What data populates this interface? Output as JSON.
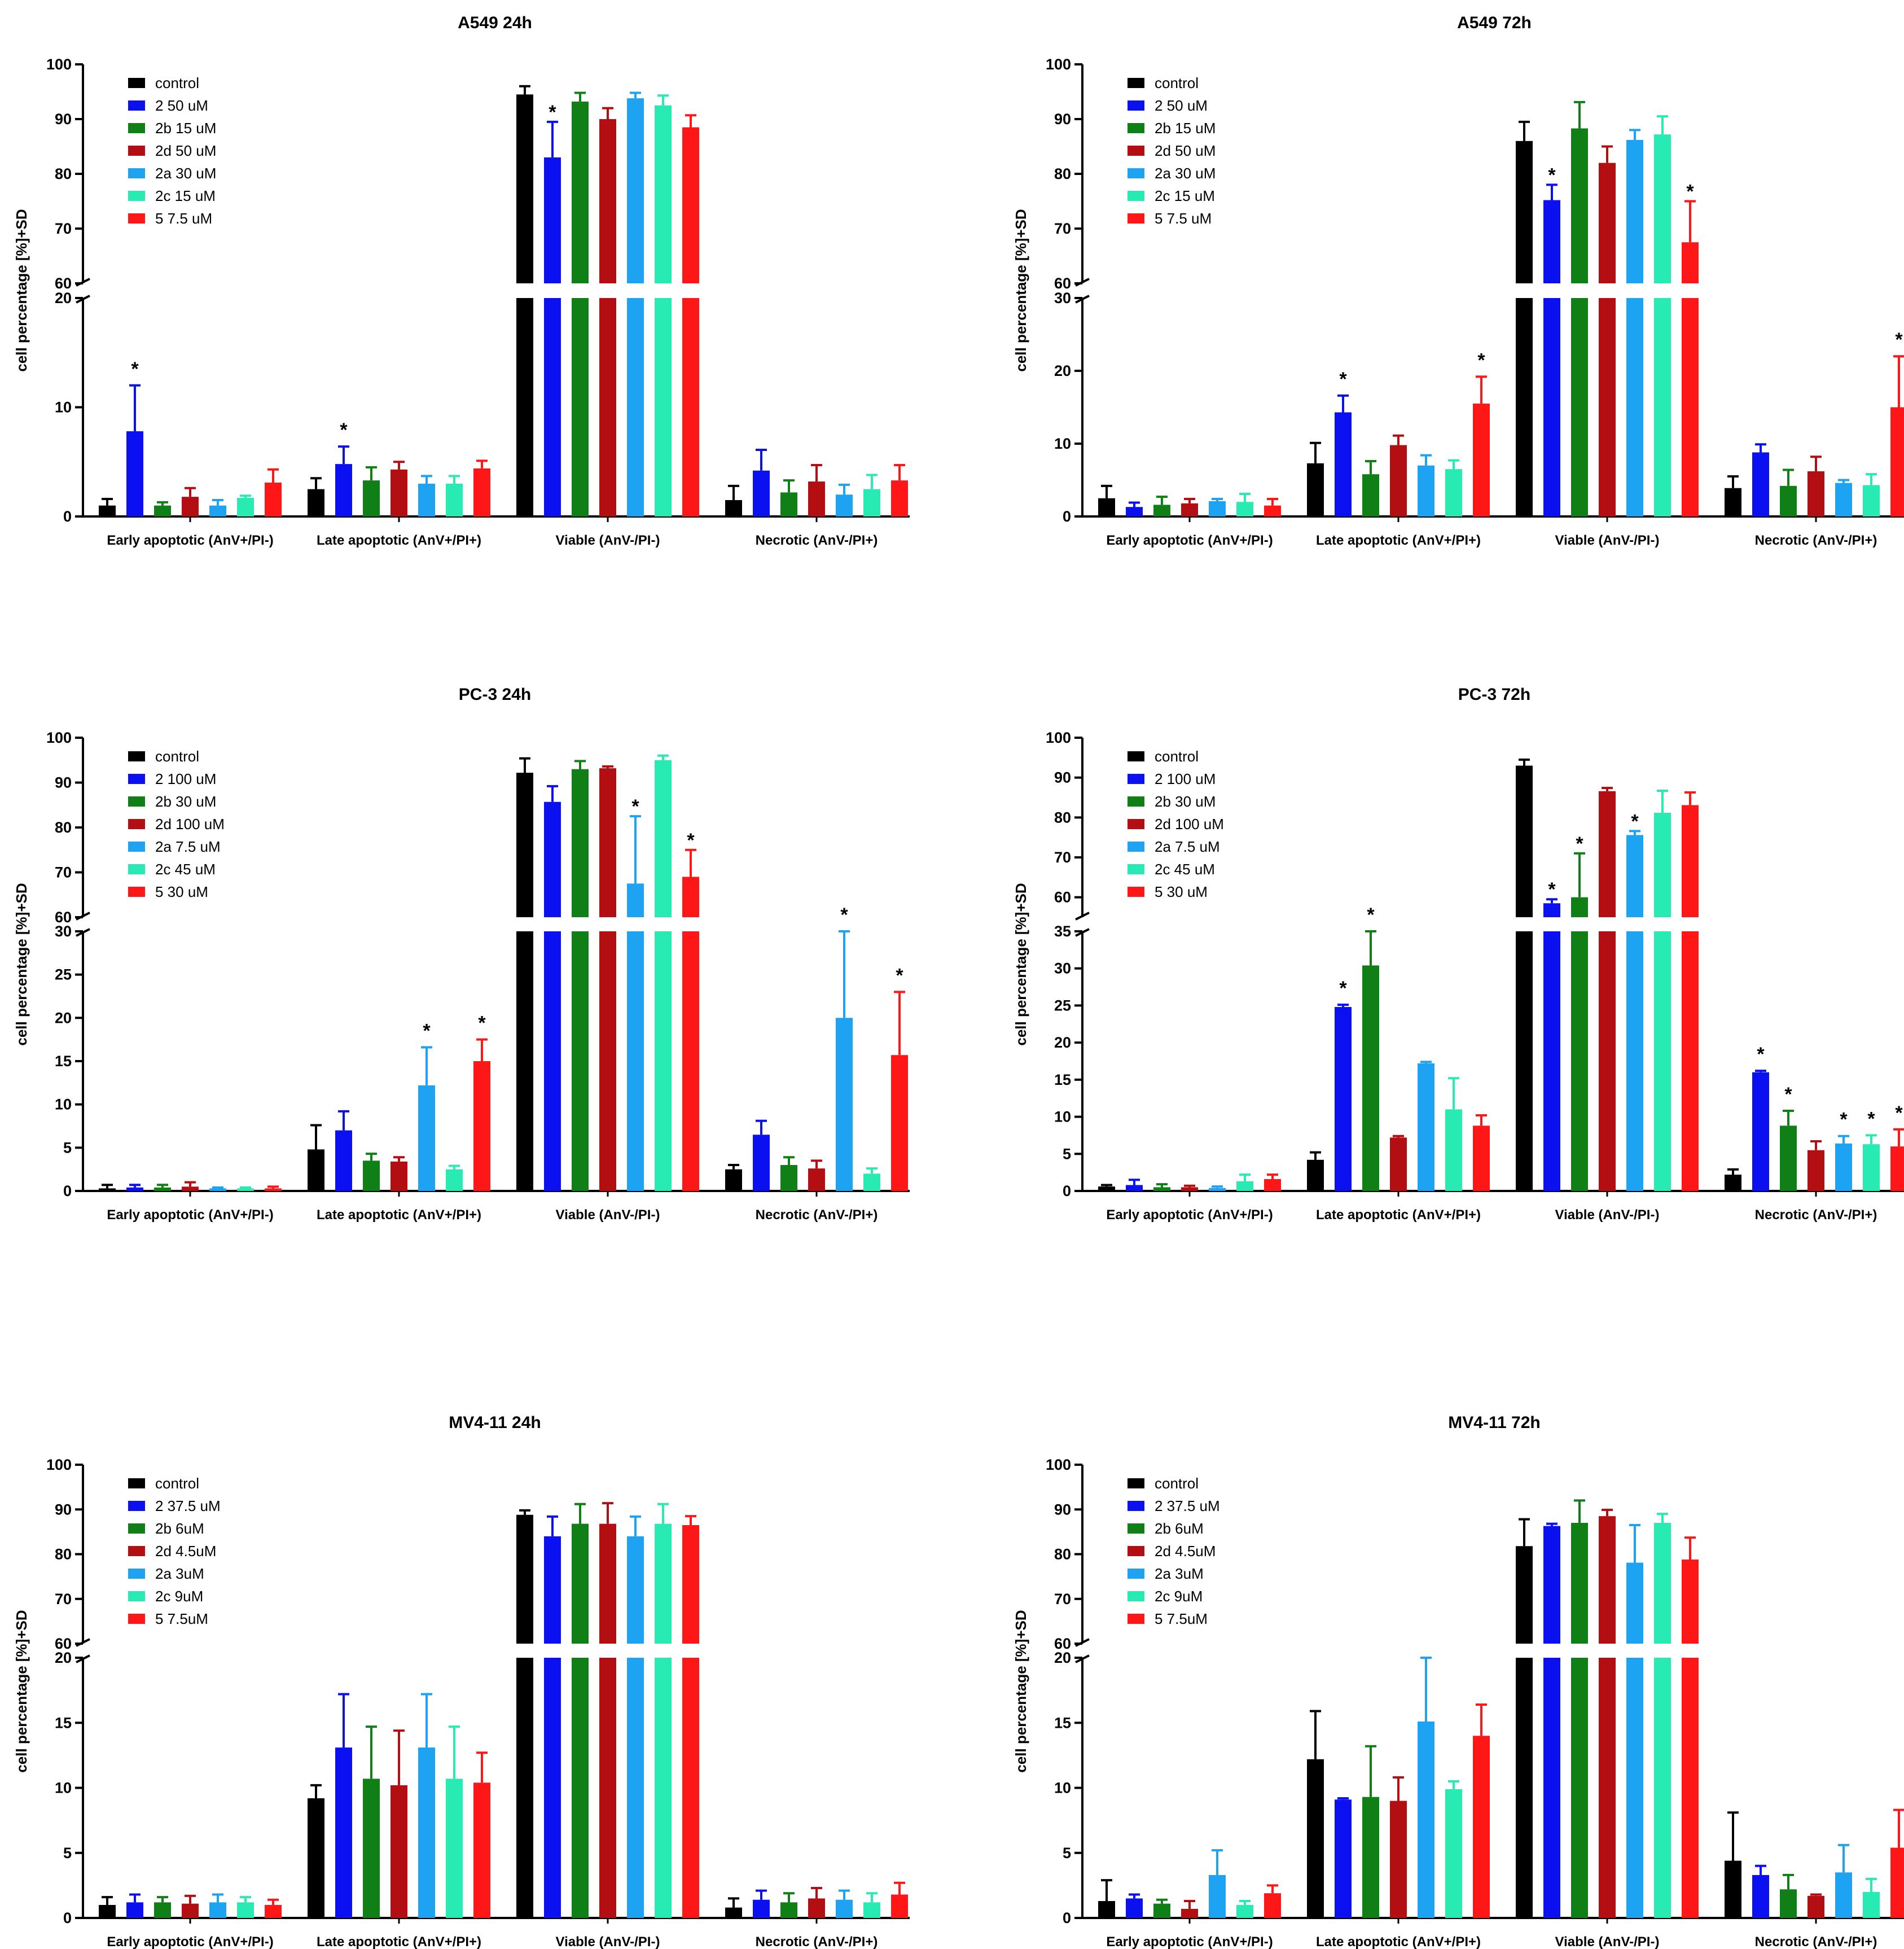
{
  "y_axis_label": "cell percentage [%]+SD",
  "colors": [
    "#000000",
    "#0b10f0",
    "#0f7f16",
    "#b30f12",
    "#1ea2f2",
    "#28ebb3",
    "#ff1616"
  ],
  "chart_data": [
    {
      "type": "bar",
      "title": "A549 24h",
      "categories": [
        "Early apoptotic (AnV+/PI-)",
        "Late apoptotic (AnV+/PI+)",
        "Viable (AnV-/PI-)",
        "Necrotic (AnV-/PI+)"
      ],
      "ylim_lower": [
        0,
        20
      ],
      "ylim_upper": [
        60,
        100
      ],
      "yticks_lower": [
        0,
        10,
        20
      ],
      "yticks_upper": [
        60,
        70,
        80,
        90,
        100
      ],
      "series": [
        {
          "name": "control",
          "values": [
            1.0,
            2.5,
            94.5,
            1.5
          ],
          "sd": [
            0.6,
            1.0,
            1.5,
            1.3
          ],
          "sig": [
            false,
            false,
            false,
            false
          ]
        },
        {
          "name": "2  50 uM",
          "values": [
            7.8,
            4.8,
            83.0,
            4.2
          ],
          "sd": [
            4.2,
            1.6,
            6.5,
            1.9
          ],
          "sig": [
            true,
            true,
            true,
            false
          ]
        },
        {
          "name": "2b 15 uM",
          "values": [
            1.0,
            3.3,
            93.2,
            2.2
          ],
          "sd": [
            0.3,
            1.2,
            1.6,
            1.1
          ],
          "sig": [
            false,
            false,
            false,
            false
          ]
        },
        {
          "name": "2d 50 uM",
          "values": [
            1.8,
            4.3,
            90.0,
            3.2
          ],
          "sd": [
            0.8,
            0.7,
            2.0,
            1.5
          ],
          "sig": [
            false,
            false,
            false,
            false
          ]
        },
        {
          "name": "2a 30 uM",
          "values": [
            1.0,
            3.0,
            93.8,
            2.0
          ],
          "sd": [
            0.5,
            0.7,
            1.0,
            0.9
          ],
          "sig": [
            false,
            false,
            false,
            false
          ]
        },
        {
          "name": "2c 15 uM",
          "values": [
            1.7,
            3.0,
            92.5,
            2.5
          ],
          "sd": [
            0.2,
            0.7,
            1.8,
            1.3
          ],
          "sig": [
            false,
            false,
            false,
            false
          ]
        },
        {
          "name": "5  7.5 uM",
          "values": [
            3.1,
            4.4,
            88.5,
            3.3
          ],
          "sd": [
            1.2,
            0.7,
            2.2,
            1.4
          ],
          "sig": [
            false,
            false,
            false,
            false
          ]
        }
      ]
    },
    {
      "type": "bar",
      "title": "A549 72h",
      "categories": [
        "Early apoptotic (AnV+/PI-)",
        "Late apoptotic (AnV+/PI+)",
        "Viable (AnV-/PI-)",
        "Necrotic (AnV-/PI+)"
      ],
      "ylim_lower": [
        0,
        30
      ],
      "ylim_upper": [
        60,
        100
      ],
      "yticks_lower": [
        0,
        10,
        20,
        30
      ],
      "yticks_upper": [
        60,
        70,
        80,
        90,
        100
      ],
      "series": [
        {
          "name": "control",
          "values": [
            2.5,
            7.3,
            86.0,
            3.9
          ],
          "sd": [
            1.7,
            2.8,
            3.5,
            1.6
          ],
          "sig": [
            false,
            false,
            false,
            false
          ]
        },
        {
          "name": "2  50 uM",
          "values": [
            1.3,
            14.3,
            75.2,
            8.8
          ],
          "sd": [
            0.6,
            2.3,
            2.8,
            1.1
          ],
          "sig": [
            false,
            true,
            true,
            false
          ]
        },
        {
          "name": "2b 15 uM",
          "values": [
            1.6,
            5.8,
            88.3,
            4.2
          ],
          "sd": [
            1.1,
            1.8,
            4.8,
            2.2
          ],
          "sig": [
            false,
            false,
            false,
            false
          ]
        },
        {
          "name": "2d 50 uM",
          "values": [
            1.8,
            9.8,
            82.0,
            6.2
          ],
          "sd": [
            0.6,
            1.3,
            3.0,
            2.0
          ],
          "sig": [
            false,
            false,
            false,
            false
          ]
        },
        {
          "name": "2a 30 uM",
          "values": [
            2.1,
            7.0,
            86.2,
            4.6
          ],
          "sd": [
            0.3,
            1.4,
            1.8,
            0.4
          ],
          "sig": [
            false,
            false,
            false,
            false
          ]
        },
        {
          "name": "2c 15 uM",
          "values": [
            2.0,
            6.5,
            87.2,
            4.3
          ],
          "sd": [
            1.1,
            1.2,
            3.3,
            1.5
          ],
          "sig": [
            false,
            false,
            false,
            false
          ]
        },
        {
          "name": "5  7.5 uM",
          "values": [
            1.5,
            15.5,
            67.5,
            15.0
          ],
          "sd": [
            0.9,
            3.7,
            7.5,
            7.0
          ],
          "sig": [
            false,
            true,
            true,
            true
          ]
        }
      ]
    },
    {
      "type": "bar",
      "title": "PC-3 24h",
      "categories": [
        "Early apoptotic (AnV+/PI-)",
        "Late apoptotic (AnV+/PI+)",
        "Viable (AnV-/PI-)",
        "Necrotic (AnV-/PI+)"
      ],
      "ylim_lower": [
        0,
        30
      ],
      "ylim_upper": [
        60,
        100
      ],
      "yticks_lower": [
        0,
        5,
        10,
        15,
        20,
        25,
        30
      ],
      "yticks_upper": [
        60,
        70,
        80,
        90,
        100
      ],
      "series": [
        {
          "name": "control",
          "values": [
            0.3,
            4.8,
            92.2,
            2.5
          ],
          "sd": [
            0.4,
            2.8,
            3.2,
            0.5
          ],
          "sig": [
            false,
            false,
            false,
            false
          ]
        },
        {
          "name": "2  100 uM",
          "values": [
            0.4,
            7.0,
            85.7,
            6.5
          ],
          "sd": [
            0.3,
            2.2,
            3.5,
            1.6
          ],
          "sig": [
            false,
            false,
            false,
            false
          ]
        },
        {
          "name": "2b 30 uM",
          "values": [
            0.4,
            3.5,
            93.0,
            3.0
          ],
          "sd": [
            0.3,
            0.8,
            1.8,
            0.9
          ],
          "sig": [
            false,
            false,
            false,
            false
          ]
        },
        {
          "name": "2d 100 uM",
          "values": [
            0.5,
            3.4,
            93.2,
            2.6
          ],
          "sd": [
            0.5,
            0.5,
            0.4,
            0.9
          ],
          "sig": [
            false,
            false,
            false,
            false
          ]
        },
        {
          "name": "2a 7.5 uM",
          "values": [
            0.3,
            12.2,
            67.5,
            20.0
          ],
          "sd": [
            0.1,
            4.4,
            15.0,
            10.0
          ],
          "sig": [
            false,
            true,
            true,
            true
          ]
        },
        {
          "name": "2c 45 uM",
          "values": [
            0.3,
            2.5,
            95.0,
            2.0
          ],
          "sd": [
            0.1,
            0.4,
            1.0,
            0.6
          ],
          "sig": [
            false,
            false,
            false,
            false
          ]
        },
        {
          "name": "5  30 uM",
          "values": [
            0.3,
            15.0,
            69.0,
            15.7
          ],
          "sd": [
            0.2,
            2.5,
            6.0,
            7.3
          ],
          "sig": [
            false,
            true,
            true,
            true
          ]
        }
      ]
    },
    {
      "type": "bar",
      "title": "PC-3 72h",
      "categories": [
        "Early apoptotic (AnV+/PI-)",
        "Late apoptotic (AnV+/PI+)",
        "Viable (AnV-/PI-)",
        "Necrotic (AnV-/PI+)"
      ],
      "ylim_lower": [
        0,
        35
      ],
      "ylim_upper": [
        55,
        100
      ],
      "yticks_lower": [
        0,
        5,
        10,
        15,
        20,
        25,
        30,
        35
      ],
      "yticks_upper": [
        60,
        70,
        80,
        90,
        100
      ],
      "series": [
        {
          "name": "control",
          "values": [
            0.6,
            4.2,
            93.0,
            2.2
          ],
          "sd": [
            0.2,
            1.0,
            1.5,
            0.7
          ],
          "sig": [
            false,
            false,
            false,
            false
          ]
        },
        {
          "name": "2  100 uM",
          "values": [
            0.8,
            24.8,
            58.5,
            16.0
          ],
          "sd": [
            0.7,
            0.3,
            1.0,
            0.2
          ],
          "sig": [
            false,
            true,
            true,
            true
          ]
        },
        {
          "name": "2b 30 uM",
          "values": [
            0.5,
            30.4,
            60.0,
            8.8
          ],
          "sd": [
            0.4,
            4.6,
            11.0,
            2.0
          ],
          "sig": [
            false,
            true,
            true,
            true
          ]
        },
        {
          "name": "2d 100 uM",
          "values": [
            0.5,
            7.2,
            86.6,
            5.5
          ],
          "sd": [
            0.2,
            0.2,
            0.8,
            1.2
          ],
          "sig": [
            false,
            false,
            false,
            false
          ]
        },
        {
          "name": "2a 7.5 uM",
          "values": [
            0.4,
            17.2,
            75.6,
            6.4
          ],
          "sd": [
            0.2,
            0.2,
            1.0,
            1.0
          ],
          "sig": [
            false,
            false,
            true,
            true
          ]
        },
        {
          "name": "2c 45 uM",
          "values": [
            1.3,
            11.0,
            81.2,
            6.3
          ],
          "sd": [
            0.9,
            4.2,
            5.5,
            1.2
          ],
          "sig": [
            false,
            false,
            false,
            true
          ]
        },
        {
          "name": "5  30 uM",
          "values": [
            1.6,
            8.8,
            83.1,
            6.0
          ],
          "sd": [
            0.6,
            1.4,
            3.2,
            2.3
          ],
          "sig": [
            false,
            false,
            false,
            true
          ]
        }
      ]
    },
    {
      "type": "bar",
      "title": "MV4-11 24h",
      "categories": [
        "Early apoptotic (AnV+/PI-)",
        "Late apoptotic (AnV+/PI+)",
        "Viable (AnV-/PI-)",
        "Necrotic (AnV-/PI+)"
      ],
      "ylim_lower": [
        0,
        20
      ],
      "ylim_upper": [
        60,
        100
      ],
      "yticks_lower": [
        0,
        5,
        10,
        15,
        20
      ],
      "yticks_upper": [
        60,
        70,
        80,
        90,
        100
      ],
      "series": [
        {
          "name": "control",
          "values": [
            1.0,
            9.2,
            88.8,
            0.8
          ],
          "sd": [
            0.6,
            1.0,
            1.0,
            0.7
          ],
          "sig": [
            false,
            false,
            false,
            false
          ]
        },
        {
          "name": "2  37.5 uM",
          "values": [
            1.2,
            13.1,
            84.0,
            1.4
          ],
          "sd": [
            0.6,
            4.1,
            4.4,
            0.7
          ],
          "sig": [
            false,
            false,
            false,
            false
          ]
        },
        {
          "name": "2b 6uM",
          "values": [
            1.2,
            10.7,
            86.8,
            1.2
          ],
          "sd": [
            0.4,
            4.0,
            4.4,
            0.7
          ],
          "sig": [
            false,
            false,
            false,
            false
          ]
        },
        {
          "name": "2d 4.5uM",
          "values": [
            1.1,
            10.2,
            86.8,
            1.5
          ],
          "sd": [
            0.6,
            4.2,
            4.6,
            0.8
          ],
          "sig": [
            false,
            false,
            false,
            false
          ]
        },
        {
          "name": "2a  3uM",
          "values": [
            1.2,
            13.1,
            84.0,
            1.4
          ],
          "sd": [
            0.6,
            4.1,
            4.4,
            0.7
          ],
          "sig": [
            false,
            false,
            false,
            false
          ]
        },
        {
          "name": "2c 9uM",
          "values": [
            1.2,
            10.7,
            86.8,
            1.2
          ],
          "sd": [
            0.4,
            4.0,
            4.4,
            0.7
          ],
          "sig": [
            false,
            false,
            false,
            false
          ]
        },
        {
          "name": "5  7.5uM",
          "values": [
            1.0,
            10.4,
            86.5,
            1.8
          ],
          "sd": [
            0.4,
            2.3,
            2.0,
            0.9
          ],
          "sig": [
            false,
            false,
            false,
            false
          ]
        }
      ]
    },
    {
      "type": "bar",
      "title": "MV4-11 72h",
      "categories": [
        "Early apoptotic (AnV+/PI-)",
        "Late apoptotic (AnV+/PI+)",
        "Viable (AnV-/PI-)",
        "Necrotic (AnV-/PI+)"
      ],
      "ylim_lower": [
        0,
        20
      ],
      "ylim_upper": [
        60,
        100
      ],
      "yticks_lower": [
        0,
        5,
        10,
        15,
        20
      ],
      "yticks_upper": [
        60,
        70,
        80,
        90,
        100
      ],
      "series": [
        {
          "name": "control",
          "values": [
            1.3,
            12.2,
            81.8,
            4.4
          ],
          "sd": [
            1.6,
            3.7,
            6.0,
            3.7
          ],
          "sig": [
            false,
            false,
            false,
            false
          ]
        },
        {
          "name": "2  37.5 uM",
          "values": [
            1.5,
            9.1,
            86.3,
            3.3
          ],
          "sd": [
            0.3,
            0.1,
            0.5,
            0.7
          ],
          "sig": [
            false,
            false,
            false,
            false
          ]
        },
        {
          "name": "2b 6uM",
          "values": [
            1.1,
            9.3,
            87.0,
            2.2
          ],
          "sd": [
            0.3,
            3.9,
            5.0,
            1.1
          ],
          "sig": [
            false,
            false,
            false,
            false
          ]
        },
        {
          "name": "2d 4.5uM",
          "values": [
            0.7,
            9.0,
            88.5,
            1.7
          ],
          "sd": [
            0.6,
            1.8,
            1.4,
            0.1
          ],
          "sig": [
            false,
            false,
            false,
            false
          ]
        },
        {
          "name": "2a  3uM",
          "values": [
            3.3,
            15.1,
            78.1,
            3.5
          ],
          "sd": [
            1.9,
            4.9,
            8.4,
            2.1
          ],
          "sig": [
            false,
            false,
            false,
            false
          ]
        },
        {
          "name": "2c 9uM",
          "values": [
            1.0,
            9.9,
            87.0,
            2.0
          ],
          "sd": [
            0.3,
            0.6,
            2.0,
            1.0
          ],
          "sig": [
            false,
            false,
            false,
            false
          ]
        },
        {
          "name": "5  7.5uM",
          "values": [
            1.9,
            14.0,
            78.8,
            5.4
          ],
          "sd": [
            0.6,
            2.4,
            4.9,
            2.9
          ],
          "sig": [
            false,
            false,
            false,
            false
          ]
        }
      ]
    }
  ]
}
